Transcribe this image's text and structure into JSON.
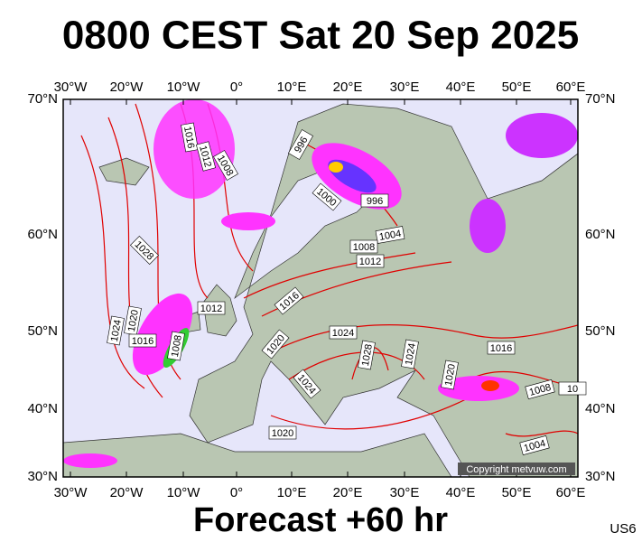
{
  "title": "0800 CEST Sat 20 Sep 2025",
  "map": {
    "lon_labels": [
      "30°W",
      "20°W",
      "10°W",
      "0°",
      "10°E",
      "20°E",
      "30°E",
      "40°E",
      "50°E",
      "60°E"
    ],
    "lat_labels": [
      "70°N",
      "60°N",
      "50°N",
      "40°N",
      "30°N"
    ],
    "isobar_labels": [
      1016,
      1012,
      1008,
      996,
      1000,
      996,
      1004,
      1008,
      1012,
      1028,
      1016,
      1012,
      1024,
      1020,
      1016,
      1008,
      1020,
      1024,
      1028,
      1024,
      1020,
      1024,
      1016,
      1008,
      1020,
      1004,
      10
    ],
    "copyright": "Copyright metvuw.com"
  },
  "footer": {
    "forecast": "Forecast +60 hr",
    "code": "US6"
  }
}
